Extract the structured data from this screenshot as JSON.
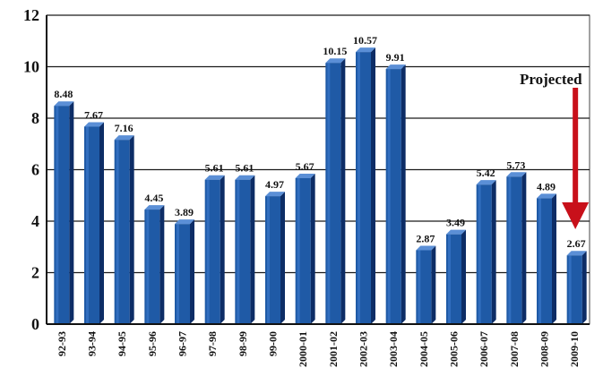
{
  "chart_data": {
    "type": "bar",
    "title": "",
    "xlabel": "",
    "ylabel": "",
    "ylim": [
      0,
      12
    ],
    "yticks": [
      "0",
      "2",
      "4",
      "6",
      "8",
      "10",
      "12"
    ],
    "grid": true,
    "legend": "none",
    "categories": [
      "92-93",
      "93-94",
      "94-95",
      "95-96",
      "96-97",
      "97-98",
      "98-99",
      "99-00",
      "2000-01",
      "2001-02",
      "2002-03",
      "2003-04",
      "2004-05",
      "2005-06",
      "2006-07",
      "2007-08",
      "2008-09",
      "2009-10"
    ],
    "values": [
      8.48,
      7.67,
      7.16,
      4.45,
      3.89,
      5.61,
      5.61,
      4.97,
      5.67,
      10.15,
      10.57,
      9.91,
      2.87,
      3.49,
      5.42,
      5.73,
      4.89,
      2.67
    ],
    "value_labels": [
      "8.48",
      "7.67",
      "7.16",
      "4.45",
      "3.89",
      "5.61",
      "5.61",
      "4.97",
      "5.67",
      "10.15",
      "10.57",
      "9.91",
      "2.87",
      "3.49",
      "5.42",
      "5.73",
      "4.89",
      "2.67"
    ],
    "annotation": {
      "text": "Projected",
      "points_to": "2009-10",
      "arrow_color": "#c8101a"
    },
    "bar_color": "#1f5aa6",
    "bar_side_color": "#0d2d66",
    "bar_top_color": "#5b8fd6"
  }
}
